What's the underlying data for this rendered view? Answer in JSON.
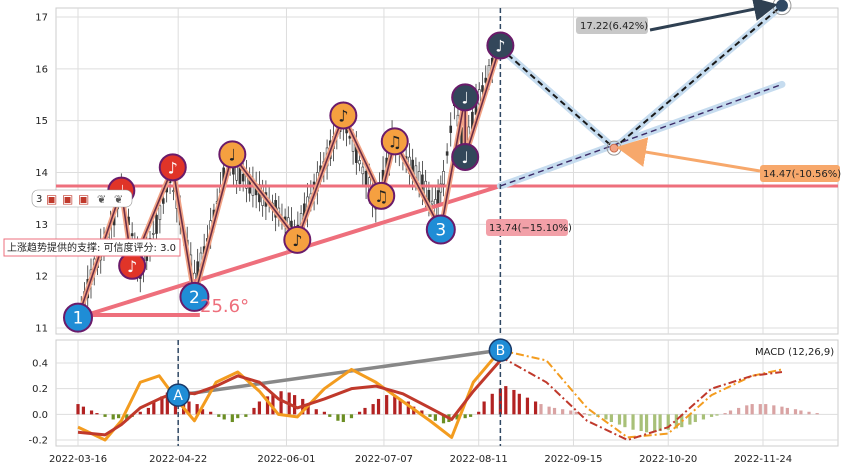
{
  "chart_data": [
    {
      "type": "line",
      "panel": "price",
      "ylim": [
        10.9,
        17.8
      ],
      "yticks": [
        11,
        12,
        13,
        14,
        15,
        16,
        17
      ],
      "grid": true,
      "price_series": [
        {
          "x": "2022-03-16",
          "y": 11.1
        },
        {
          "x": "2022-03-22",
          "y": 12.2
        },
        {
          "x": "2022-03-28",
          "y": 12.9
        },
        {
          "x": "2022-04-01",
          "y": 13.6
        },
        {
          "x": "2022-04-05",
          "y": 12.8
        },
        {
          "x": "2022-04-08",
          "y": 12.1
        },
        {
          "x": "2022-04-14",
          "y": 13.0
        },
        {
          "x": "2022-04-19",
          "y": 13.9
        },
        {
          "x": "2022-04-24",
          "y": 12.9
        },
        {
          "x": "2022-04-28",
          "y": 11.9
        },
        {
          "x": "2022-05-04",
          "y": 12.9
        },
        {
          "x": "2022-05-10",
          "y": 14.2
        },
        {
          "x": "2022-05-16",
          "y": 13.9
        },
        {
          "x": "2022-05-22",
          "y": 13.6
        },
        {
          "x": "2022-05-28",
          "y": 13.3
        },
        {
          "x": "2022-06-04",
          "y": 12.8
        },
        {
          "x": "2022-06-10",
          "y": 13.5
        },
        {
          "x": "2022-06-16",
          "y": 14.3
        },
        {
          "x": "2022-06-22",
          "y": 15.0
        },
        {
          "x": "2022-06-28",
          "y": 14.2
        },
        {
          "x": "2022-07-04",
          "y": 13.4
        },
        {
          "x": "2022-07-08",
          "y": 14.1
        },
        {
          "x": "2022-07-10",
          "y": 14.6
        },
        {
          "x": "2022-07-14",
          "y": 14.3
        },
        {
          "x": "2022-07-20",
          "y": 13.9
        },
        {
          "x": "2022-07-26",
          "y": 13.3
        },
        {
          "x": "2022-07-29",
          "y": 13.9
        },
        {
          "x": "2022-08-02",
          "y": 15.3
        },
        {
          "x": "2022-08-06",
          "y": 14.4
        },
        {
          "x": "2022-08-10",
          "y": 15.3
        },
        {
          "x": "2022-08-16",
          "y": 16.1
        },
        {
          "x": "2022-08-18",
          "y": 16.4
        }
      ],
      "markers": [
        {
          "label": "1",
          "x": "2022-03-16",
          "y": 11.2,
          "color": "#1f8dd6"
        },
        {
          "label": "2",
          "x": "2022-04-28",
          "y": 11.6,
          "color": "#1f8dd6"
        },
        {
          "label": "3",
          "x": "2022-07-28",
          "y": 12.9,
          "color": "#1f8dd6"
        },
        {
          "label": "♩",
          "x": "2022-04-01",
          "y": 13.65,
          "color": "#e03428"
        },
        {
          "label": "♪",
          "x": "2022-04-05",
          "y": 12.2,
          "color": "#e03428"
        },
        {
          "label": "♪",
          "x": "2022-04-20",
          "y": 14.1,
          "color": "#e03428"
        },
        {
          "label": "♩",
          "x": "2022-05-12",
          "y": 14.35,
          "color": "#f5a040"
        },
        {
          "label": "♪",
          "x": "2022-06-05",
          "y": 12.7,
          "color": "#f5a040"
        },
        {
          "label": "♪",
          "x": "2022-06-22",
          "y": 15.1,
          "color": "#f5a040"
        },
        {
          "label": "♫",
          "x": "2022-07-06",
          "y": 13.55,
          "color": "#f5a040"
        },
        {
          "label": "♫",
          "x": "2022-07-11",
          "y": 14.6,
          "color": "#f5a040"
        },
        {
          "label": "♩",
          "x": "2022-08-06",
          "y": 15.45,
          "color": "#33475a"
        },
        {
          "label": "♩",
          "x": "2022-08-06",
          "y": 14.3,
          "color": "#33475a"
        },
        {
          "label": "♪",
          "x": "2022-08-19",
          "y": 16.45,
          "color": "#33475a"
        }
      ],
      "support_level": 13.74,
      "support_label": "13.74(−15.10%)",
      "trend_support_text": "上涨趋势提供的支撑: 可信度评分: 3.0",
      "angle_text": "25.6°",
      "zigzag_rising_x": "2022-03-16",
      "projection_start": {
        "x": "2022-08-19",
        "y": 16.4
      },
      "projection_mid": {
        "x": "2022-09-30",
        "y": 14.47
      },
      "projection_end": {
        "x": "2022-12-01",
        "y": 17.22
      },
      "target_high": {
        "value": 17.22,
        "label": "17.22(6.42%)"
      },
      "target_low": {
        "value": 14.47,
        "label": "14.47(-10.56%)"
      },
      "wedge_upper_end": {
        "x": "2022-12-01",
        "y": 15.7
      },
      "vline_x": "2022-08-19",
      "legend_icons": [
        "3",
        "▣",
        "▣",
        "▣",
        "❦",
        "❦"
      ]
    },
    {
      "type": "bar",
      "panel": "macd",
      "title": "MACD (12,26,9)",
      "ylim": [
        -0.25,
        0.55
      ],
      "yticks": [
        -0.2,
        0.0,
        0.2,
        0.4
      ],
      "xticks": [
        "2022-03-16",
        "2022-04-22",
        "2022-06-01",
        "2022-07-07",
        "2022-08-11",
        "2022-09-15",
        "2022-10-20",
        "2022-11-24"
      ],
      "marker_a": {
        "label": "A",
        "x": "2022-04-22",
        "y": 0.15
      },
      "marker_b": {
        "label": "B",
        "x": "2022-08-19",
        "y": 0.5
      },
      "vline_a_x": "2022-04-22",
      "vline_b_x": "2022-08-19",
      "macd_line": [
        {
          "x": "2022-03-16",
          "y": -0.14
        },
        {
          "x": "2022-03-26",
          "y": -0.16
        },
        {
          "x": "2022-04-01",
          "y": -0.08
        },
        {
          "x": "2022-04-08",
          "y": 0.05
        },
        {
          "x": "2022-04-15",
          "y": 0.12
        },
        {
          "x": "2022-04-22",
          "y": 0.18
        },
        {
          "x": "2022-04-28",
          "y": 0.16
        },
        {
          "x": "2022-05-06",
          "y": 0.22
        },
        {
          "x": "2022-05-14",
          "y": 0.3
        },
        {
          "x": "2022-05-22",
          "y": 0.25
        },
        {
          "x": "2022-05-29",
          "y": 0.12
        },
        {
          "x": "2022-06-05",
          "y": 0.05
        },
        {
          "x": "2022-06-15",
          "y": 0.12
        },
        {
          "x": "2022-06-25",
          "y": 0.2
        },
        {
          "x": "2022-07-04",
          "y": 0.22
        },
        {
          "x": "2022-07-14",
          "y": 0.16
        },
        {
          "x": "2022-07-24",
          "y": 0.05
        },
        {
          "x": "2022-08-01",
          "y": -0.04
        },
        {
          "x": "2022-08-09",
          "y": 0.18
        },
        {
          "x": "2022-08-19",
          "y": 0.42
        }
      ],
      "signal_line": [
        {
          "x": "2022-03-16",
          "y": -0.1
        },
        {
          "x": "2022-03-26",
          "y": -0.2
        },
        {
          "x": "2022-04-01",
          "y": -0.05
        },
        {
          "x": "2022-04-08",
          "y": 0.25
        },
        {
          "x": "2022-04-15",
          "y": 0.3
        },
        {
          "x": "2022-04-22",
          "y": 0.1
        },
        {
          "x": "2022-04-28",
          "y": -0.05
        },
        {
          "x": "2022-05-06",
          "y": 0.25
        },
        {
          "x": "2022-05-14",
          "y": 0.33
        },
        {
          "x": "2022-05-22",
          "y": 0.18
        },
        {
          "x": "2022-05-29",
          "y": 0.0
        },
        {
          "x": "2022-06-05",
          "y": -0.02
        },
        {
          "x": "2022-06-15",
          "y": 0.2
        },
        {
          "x": "2022-06-25",
          "y": 0.35
        },
        {
          "x": "2022-07-04",
          "y": 0.25
        },
        {
          "x": "2022-07-14",
          "y": 0.1
        },
        {
          "x": "2022-07-24",
          "y": -0.05
        },
        {
          "x": "2022-08-01",
          "y": -0.18
        },
        {
          "x": "2022-08-09",
          "y": 0.25
        },
        {
          "x": "2022-08-19",
          "y": 0.5
        }
      ],
      "macd_projection": [
        {
          "x": "2022-08-19",
          "y": 0.45
        },
        {
          "x": "2022-09-05",
          "y": 0.25
        },
        {
          "x": "2022-09-20",
          "y": -0.05
        },
        {
          "x": "2022-10-05",
          "y": -0.2
        },
        {
          "x": "2022-10-20",
          "y": -0.1
        },
        {
          "x": "2022-11-05",
          "y": 0.2
        },
        {
          "x": "2022-11-20",
          "y": 0.3
        },
        {
          "x": "2022-12-01",
          "y": 0.33
        }
      ],
      "signal_projection": [
        {
          "x": "2022-08-19",
          "y": 0.5
        },
        {
          "x": "2022-09-05",
          "y": 0.42
        },
        {
          "x": "2022-09-20",
          "y": 0.05
        },
        {
          "x": "2022-10-05",
          "y": -0.18
        },
        {
          "x": "2022-10-20",
          "y": -0.15
        },
        {
          "x": "2022-11-05",
          "y": 0.15
        },
        {
          "x": "2022-11-20",
          "y": 0.3
        },
        {
          "x": "2022-12-01",
          "y": 0.35
        }
      ],
      "histogram_start": "2022-03-16",
      "histogram": [
        0.08,
        0.06,
        0.03,
        0.01,
        -0.02,
        -0.04,
        -0.03,
        -0.05,
        -0.02,
        0.02,
        0.05,
        0.1,
        0.14,
        0.17,
        0.15,
        0.12,
        0.1,
        0.08,
        0.04,
        0.02,
        -0.02,
        -0.04,
        -0.06,
        -0.03,
        -0.02,
        0.05,
        0.1,
        0.14,
        0.16,
        0.18,
        0.17,
        0.15,
        0.12,
        0.08,
        0.04,
        0.02,
        -0.02,
        -0.05,
        -0.06,
        -0.03,
        0.02,
        0.05,
        0.08,
        0.12,
        0.15,
        0.14,
        0.12,
        0.1,
        0.06,
        0.03,
        -0.02,
        -0.05,
        -0.07,
        -0.06,
        -0.04,
        -0.03,
        -0.02,
        0.02,
        0.1,
        0.16,
        0.2,
        0.22,
        0.19,
        0.16,
        0.13,
        0.1,
        0.08,
        0.06,
        0.05,
        0.04,
        0.03,
        0.02,
        0.01,
        -0.01,
        -0.02,
        -0.04,
        -0.06,
        -0.08,
        -0.1,
        -0.12,
        -0.13,
        -0.14,
        -0.14,
        -0.13,
        -0.12,
        -0.11,
        -0.1,
        -0.08,
        -0.06,
        -0.04,
        -0.02,
        -0.01,
        0.01,
        0.03,
        0.05,
        0.07,
        0.08,
        0.08,
        0.08,
        0.07,
        0.06,
        0.05,
        0.04,
        0.03,
        0.02,
        0.01
      ],
      "histogram_projection_from_index": 66
    }
  ],
  "colors": {
    "support": "#ee6f7c",
    "zigzag_light": "#f2a385",
    "zigzag_dark": "#6b2d46",
    "projection": "#1a1a1a",
    "projection_halo": "#c6dcef",
    "macd_line": "#c0392b",
    "signal_line": "#f39c1f",
    "hist_pos": "#b22222",
    "hist_neg": "#6b8e23",
    "hist_pos_proj": "#d9a3a3",
    "hist_neg_proj": "#a8c078",
    "label_bg_grey": "#c8c8c8",
    "label_bg_orange": "#f7a86b",
    "label_bg_pink": "#f2a0a8",
    "arrow_dark": "#2f4052",
    "target_dot": "#2f4863",
    "vline": "#2f4863"
  }
}
